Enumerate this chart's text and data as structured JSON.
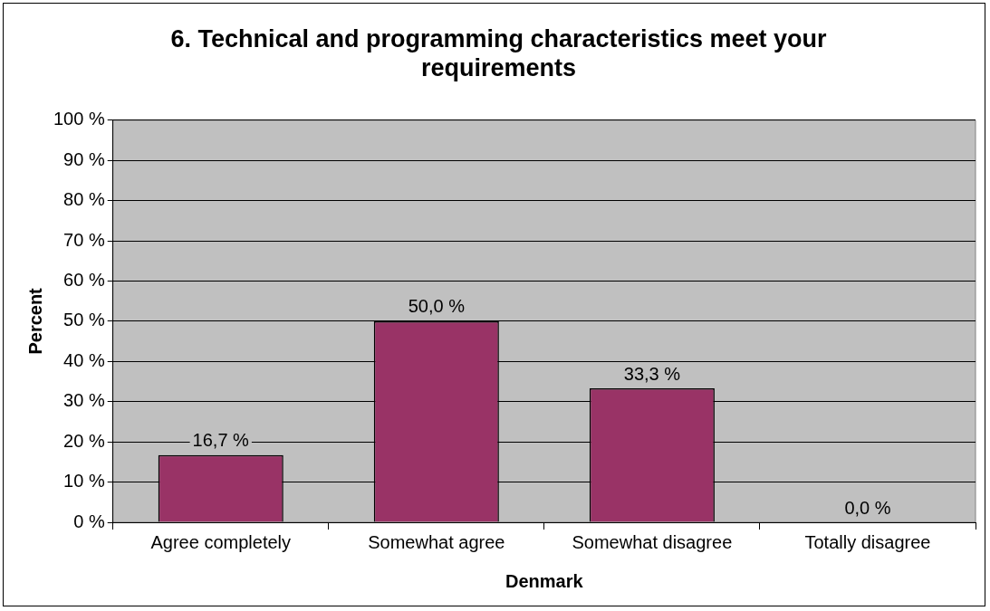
{
  "chart_data": {
    "type": "bar",
    "title": "6. Technical and programming characteristics meet your requirements",
    "xlabel": "Denmark",
    "ylabel": "Percent",
    "categories": [
      "Agree completely",
      "Somewhat agree",
      "Somewhat disagree",
      "Totally disagree"
    ],
    "values": [
      16.7,
      50.0,
      33.3,
      0.0
    ],
    "color": "#993366",
    "value_labels": [
      "16,7 %",
      "50,0 %",
      "33,3 %",
      "0,0 %"
    ],
    "ylim": [
      0,
      100
    ],
    "yticks": [
      {
        "value": 0,
        "label": "0 %"
      },
      {
        "value": 10,
        "label": "10 %"
      },
      {
        "value": 20,
        "label": "20 %"
      },
      {
        "value": 30,
        "label": "30 %"
      },
      {
        "value": 40,
        "label": "40 %"
      },
      {
        "value": 50,
        "label": "50 %"
      },
      {
        "value": 60,
        "label": "60 %"
      },
      {
        "value": 70,
        "label": "70 %"
      },
      {
        "value": 80,
        "label": "80 %"
      },
      {
        "value": 90,
        "label": "90 %"
      },
      {
        "value": 100,
        "label": "100 %"
      }
    ],
    "grid": "y",
    "legend": false
  }
}
